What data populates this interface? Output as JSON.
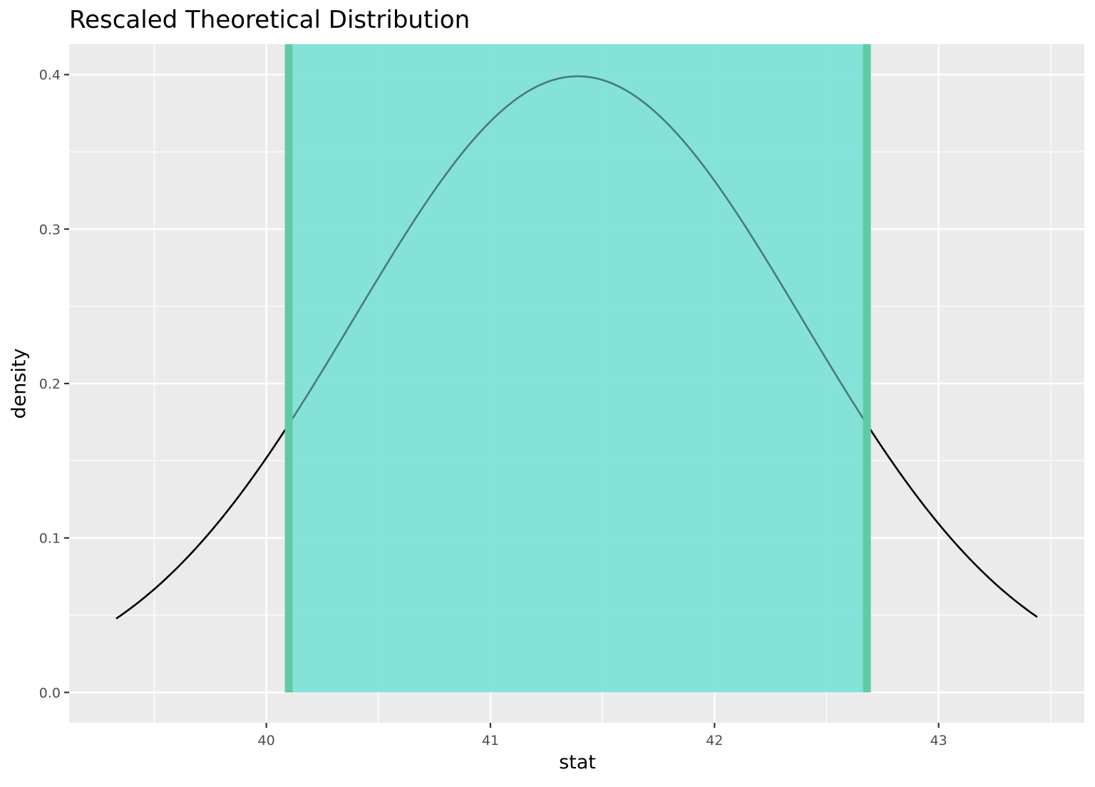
{
  "chart_data": {
    "type": "area",
    "title": "Rescaled Theoretical Distribution",
    "xlabel": "stat",
    "ylabel": "density",
    "xlim": [
      39.12,
      43.65
    ],
    "ylim": [
      -0.0197,
      0.4197
    ],
    "x_ticks": [
      40,
      41,
      42,
      43
    ],
    "x_tick_labels": [
      "40",
      "41",
      "42",
      "43"
    ],
    "y_ticks": [
      0.0,
      0.1,
      0.2,
      0.3,
      0.4
    ],
    "y_tick_labels": [
      "0.0",
      "0.1",
      "0.2",
      "0.3",
      "0.4"
    ],
    "grid": true,
    "curve": {
      "distribution": "normal",
      "mean": 41.39,
      "sd": 1.0,
      "x_range": [
        39.33,
        43.44
      ],
      "color": "#000000"
    },
    "shaded_interval": {
      "lower": 40.1,
      "upper": 42.68,
      "fill_color": "#7fe2d8",
      "edge_color": "#5fcba4"
    },
    "colors": {
      "panel_background": "#ebebeb",
      "grid": "#ffffff",
      "tick_label": "#4d4d4d"
    }
  }
}
